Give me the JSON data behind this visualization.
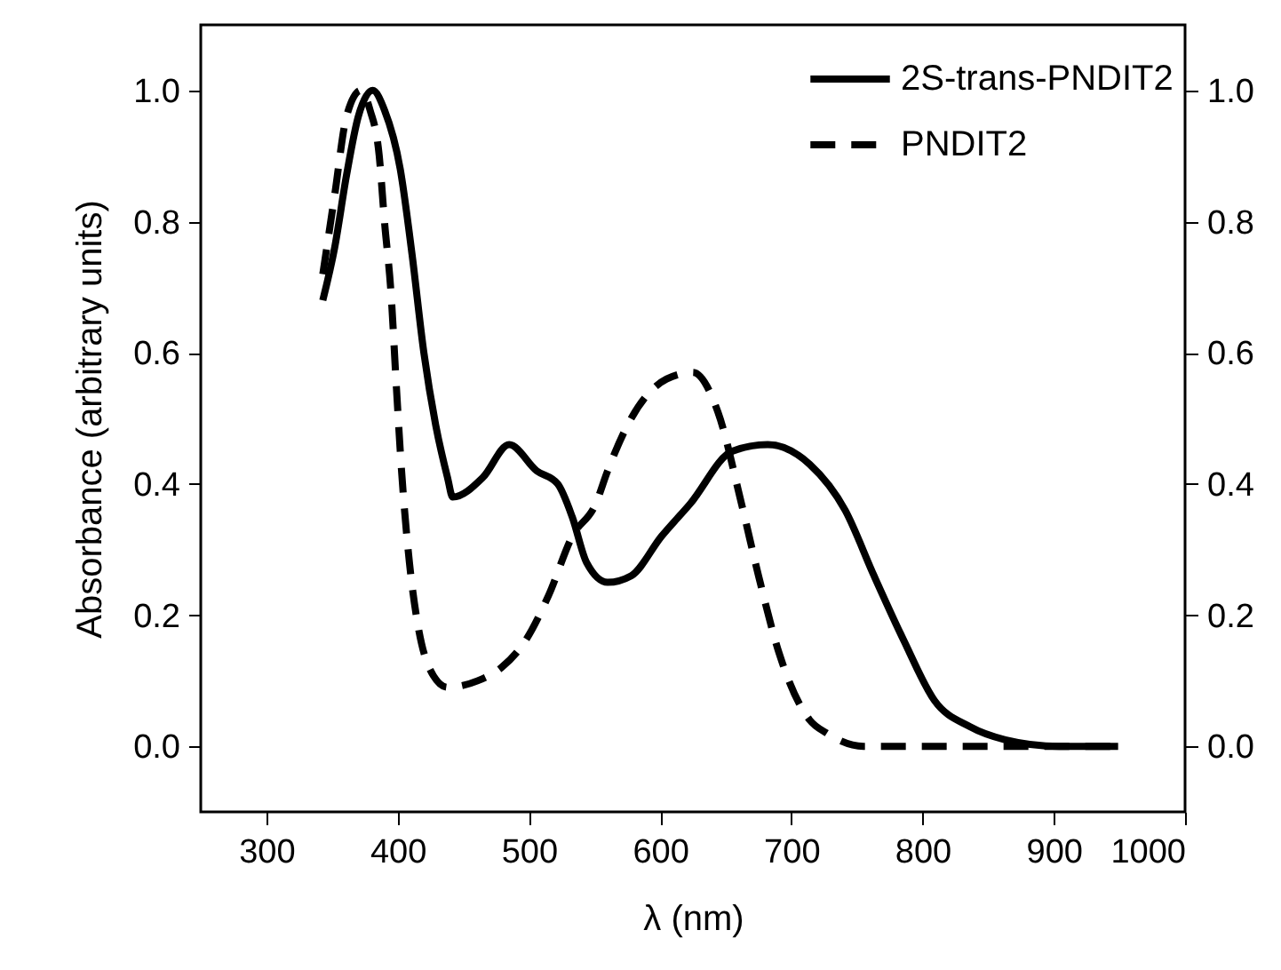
{
  "chart_data": {
    "type": "line",
    "xlabel": "λ (nm)",
    "ylabel": "Absorbance (arbitrary units)",
    "xlim": [
      250,
      1000
    ],
    "xticks": [
      300,
      400,
      500,
      600,
      700,
      800,
      900,
      1000
    ],
    "ylim": [
      -0.1,
      1.1
    ],
    "yticks": [
      {
        "value": 0,
        "label": "0.0"
      },
      0.2,
      0.4,
      0.6,
      0.8,
      {
        "value": 1,
        "label": "1.0"
      }
    ],
    "y2lim": [
      -0.1,
      1.1
    ],
    "y2ticks": [
      {
        "value": 0,
        "label": "0.0"
      },
      0.2,
      0.4,
      0.6,
      0.8,
      {
        "value": 1,
        "label": "1.0"
      }
    ],
    "legend": "top right",
    "series": [
      {
        "name": "2S-trans-PNDIT2",
        "color": "#000000",
        "line_style": "solid",
        "x": [
          343,
          352,
          361,
          370,
          381,
          390,
          402,
          411,
          420,
          429,
          438,
          442,
          465,
          485,
          506,
          522,
          533,
          544,
          560,
          578,
          601,
          623,
          655,
          682,
          714,
          741,
          763,
          786,
          809,
          836,
          863,
          904,
          949
        ],
        "values": [
          0.68,
          0.76,
          0.87,
          0.96,
          1.0,
          0.97,
          0.88,
          0.75,
          0.6,
          0.49,
          0.41,
          0.38,
          0.41,
          0.46,
          0.42,
          0.4,
          0.35,
          0.28,
          0.25,
          0.26,
          0.32,
          0.37,
          0.45,
          0.46,
          0.43,
          0.36,
          0.26,
          0.16,
          0.07,
          0.03,
          0.01,
          0.0,
          0.0
        ]
      },
      {
        "name": "PNDIT2",
        "color": "#000000",
        "line_style": "dashed",
        "x": [
          343,
          352,
          361,
          372,
          379,
          386,
          390,
          395,
          399,
          403,
          409,
          415,
          424,
          438,
          461,
          479,
          497,
          515,
          533,
          551,
          560,
          578,
          605,
          625,
          644,
          662,
          675,
          691,
          714,
          727,
          755,
          949
        ],
        "values": [
          0.72,
          0.84,
          0.96,
          1.0,
          0.97,
          0.9,
          0.8,
          0.69,
          0.55,
          0.42,
          0.28,
          0.19,
          0.12,
          0.09,
          0.1,
          0.12,
          0.16,
          0.23,
          0.32,
          0.37,
          0.42,
          0.5,
          0.56,
          0.57,
          0.51,
          0.37,
          0.26,
          0.14,
          0.04,
          0.02,
          0.0,
          0.0
        ]
      }
    ]
  }
}
